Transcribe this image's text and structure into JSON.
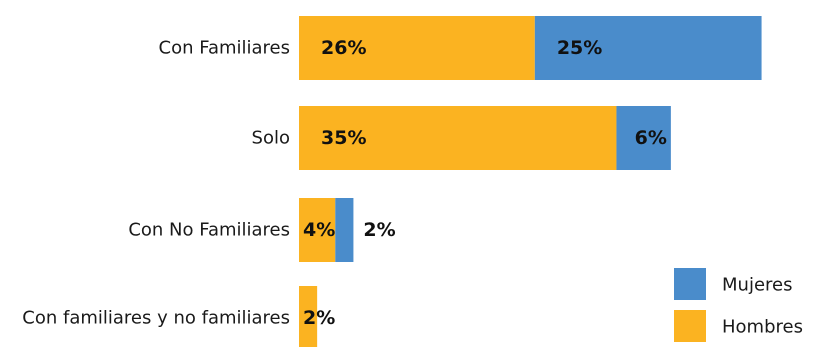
{
  "chart_data": {
    "type": "bar",
    "orientation": "horizontal",
    "stacked": true,
    "categories": [
      "Con Familiares",
      "Solo",
      "Con No Familiares",
      "Con familiares y no familiares"
    ],
    "series": [
      {
        "name": "Hombres",
        "values": [
          26,
          35,
          4,
          2
        ],
        "labels": [
          "26%",
          "35%",
          "4%",
          "2%"
        ],
        "color": "#FBB321"
      },
      {
        "name": "Mujeres",
        "values": [
          25,
          6,
          2,
          0
        ],
        "labels": [
          "25%",
          "6%",
          "2%",
          ""
        ],
        "color": "#4A8CCB"
      }
    ],
    "unit": "%",
    "grid": false,
    "legend": {
      "position": "bottom-right",
      "items": [
        "Mujeres",
        "Hombres"
      ]
    }
  }
}
